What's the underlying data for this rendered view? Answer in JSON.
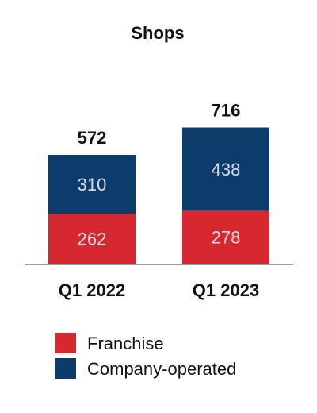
{
  "chart_data": {
    "type": "bar",
    "stacked": true,
    "title": "Shops",
    "categories": [
      "Q1 2022",
      "Q1 2023"
    ],
    "series": [
      {
        "name": "Franchise",
        "values": [
          262,
          278
        ],
        "color": "#d7282f"
      },
      {
        "name": "Company-operated",
        "values": [
          310,
          438
        ],
        "color": "#0c3c6b"
      }
    ],
    "totals": [
      572,
      716
    ],
    "xlabel": "",
    "ylabel": "",
    "grid": false,
    "legend_position": "bottom"
  }
}
